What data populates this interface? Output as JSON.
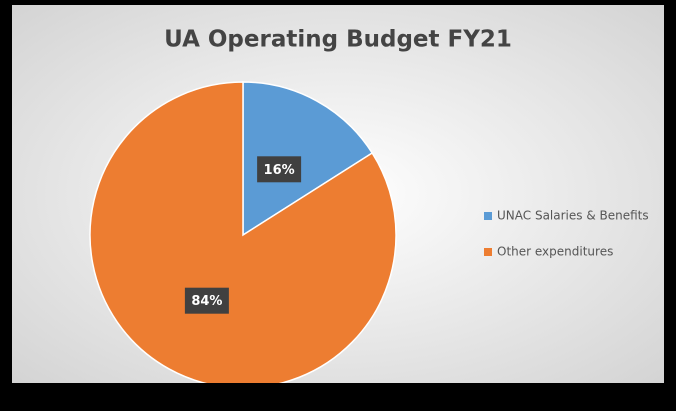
{
  "chart_data": {
    "type": "pie",
    "title": "UA Operating Budget FY21",
    "categories": [
      "UNAC Salaries & Benefits",
      "Other expenditures"
    ],
    "values": [
      16,
      84
    ],
    "value_labels": [
      "16%",
      "84%"
    ],
    "colors": [
      "#5b9bd5",
      "#ed7d31"
    ],
    "legend": "right"
  }
}
